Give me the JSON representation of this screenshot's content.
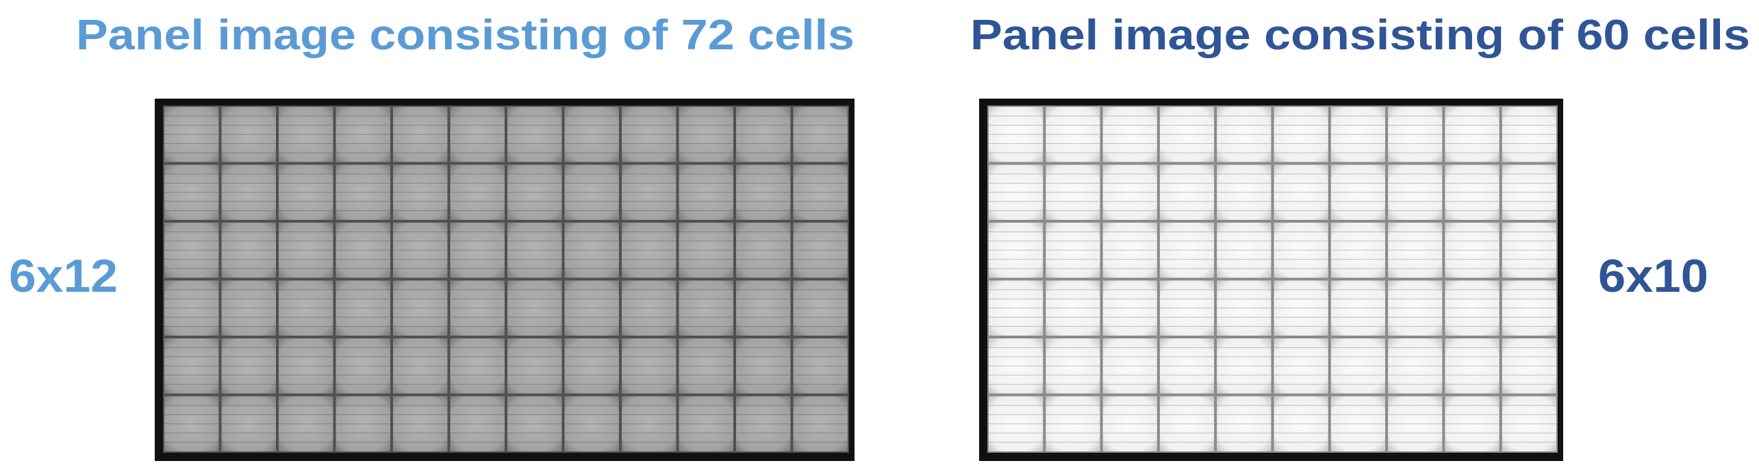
{
  "panels": [
    {
      "title": "Panel image consisting of 72 cells",
      "label": "6x12",
      "color": "#5b9bd5"
    },
    {
      "title": "Panel image consisting of 60 cells",
      "label": "6x10",
      "color": "#2f5597"
    }
  ]
}
